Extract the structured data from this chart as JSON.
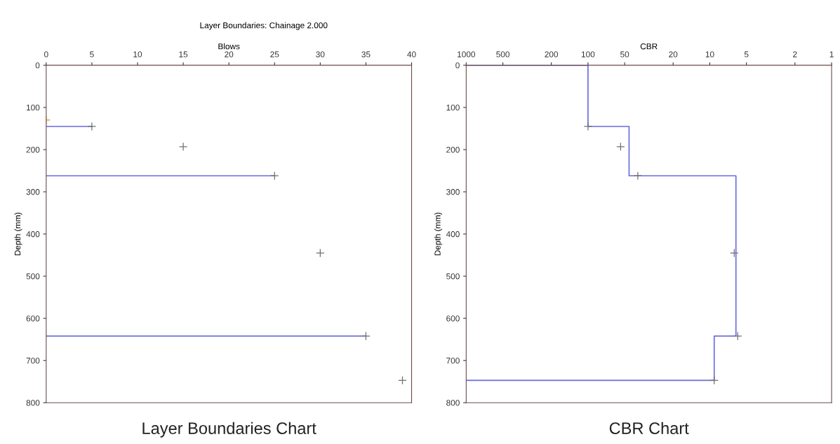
{
  "chart_data": [
    {
      "type": "scatter",
      "title": "Layer Boundaries: Chainage 2.000",
      "xlabel": "Blows",
      "ylabel": "Depth (mm)",
      "xlim": [
        0,
        40
      ],
      "xticks": [
        0,
        5,
        10,
        15,
        20,
        25,
        30,
        35,
        40
      ],
      "ylim": [
        800,
        0
      ],
      "yticks": [
        0,
        100,
        200,
        300,
        400,
        500,
        600,
        700,
        800
      ],
      "series": [
        {
          "type": "line",
          "color": "#6a6ae0",
          "x": [
            0,
            5,
            null,
            0,
            25,
            null,
            0,
            35
          ],
          "values": [
            145,
            145,
            null,
            262,
            262,
            null,
            642,
            642
          ]
        },
        {
          "type": "scatter",
          "marker": "cross",
          "colors": [
            "#d4a020",
            "#707070",
            "#707070",
            "#707070",
            "#707070",
            "#707070",
            "#707070"
          ],
          "x": [
            0,
            5,
            15,
            25,
            30,
            35,
            39
          ],
          "values": [
            130,
            145,
            193,
            262,
            445,
            642,
            747
          ]
        }
      ],
      "annotations": [
        "Layer Boundaries Chart"
      ]
    },
    {
      "type": "scatter",
      "xlabel": "CBR",
      "ylabel": "Depth (mm)",
      "log": "x",
      "xlim": [
        1000,
        1
      ],
      "xticks": [
        1000,
        500,
        200,
        100,
        50,
        20,
        10,
        5,
        2,
        1
      ],
      "ylim": [
        800,
        0
      ],
      "yticks": [
        0,
        100,
        200,
        300,
        400,
        500,
        600,
        700,
        800
      ],
      "series": [
        {
          "type": "line",
          "color": "#6a6ae0",
          "x": [
            1000,
            100,
            100,
            46,
            46,
            6.1,
            6.1,
            9.2,
            9.2,
            1000
          ],
          "values": [
            0,
            0,
            145,
            145,
            262,
            262,
            642,
            642,
            747,
            747
          ]
        },
        {
          "type": "scatter",
          "marker": "cross",
          "color": "#707070",
          "x": [
            100,
            54,
            39,
            6.3,
            5.9,
            9.2
          ],
          "values": [
            145,
            193,
            262,
            445,
            642,
            747
          ]
        }
      ],
      "annotations": [
        "CBR Chart"
      ]
    }
  ]
}
